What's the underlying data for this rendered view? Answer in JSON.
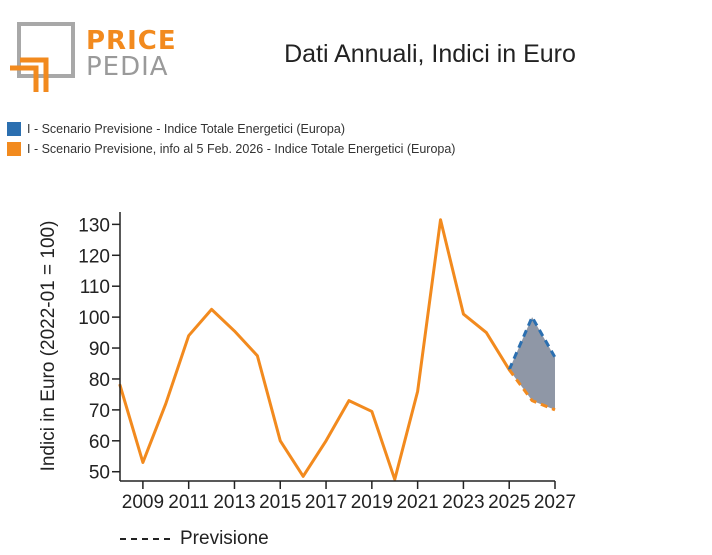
{
  "logo": {
    "word1": "PRICE",
    "word2": "PEDIA"
  },
  "title": "Dati Annuali, Indici in Euro",
  "legend": [
    {
      "label": "I - Scenario Previsione - Indice Totale Energetici (Europa)",
      "color": "#2b6fb0"
    },
    {
      "label": "I - Scenario Previsione, info al 5 Feb. 2026 - Indice Totale Energetici (Europa)",
      "color": "#f28a1e"
    }
  ],
  "footer_legend": {
    "label": "Previsione"
  },
  "colors": {
    "orange": "#f28a1e",
    "blue": "#2b6fb0",
    "band": "#8f97a6"
  },
  "chart_data": {
    "type": "line",
    "ylabel": "Indici in Euro (2022-01 = 100)",
    "xlabel": "",
    "xlim": [
      2008,
      2027
    ],
    "ylim": [
      47,
      134
    ],
    "x_ticks": [
      2009,
      2011,
      2013,
      2015,
      2017,
      2019,
      2021,
      2023,
      2025,
      2027
    ],
    "y_ticks": [
      50,
      60,
      70,
      80,
      90,
      100,
      110,
      120,
      130
    ],
    "series": [
      {
        "name": "I - Scenario Previsione, info al 5 Feb. 2026 - Indice Totale Energetici (Europa)",
        "style": "solid",
        "x": [
          2008,
          2009,
          2010,
          2011,
          2012,
          2013,
          2014,
          2015,
          2016,
          2017,
          2018,
          2019,
          2020,
          2021,
          2022,
          2023,
          2024,
          2025
        ],
        "values": [
          78,
          53,
          72,
          94,
          102.5,
          95.5,
          87.5,
          60,
          48.5,
          60,
          73,
          69.5,
          47.5,
          76,
          131.5,
          101,
          95,
          83
        ]
      },
      {
        "name": "I - Scenario Previsione - Indice Totale Energetici (Europa)",
        "style": "dashed",
        "x": [
          2025,
          2026,
          2027
        ],
        "values": [
          83,
          100,
          87
        ]
      },
      {
        "name": "I - Scenario Previsione, info al 5 Feb. 2026 - Indice Totale Energetici (Europa)",
        "style": "dashed",
        "x": [
          2025,
          2026,
          2027
        ],
        "values": [
          83,
          73,
          70
        ]
      }
    ]
  }
}
